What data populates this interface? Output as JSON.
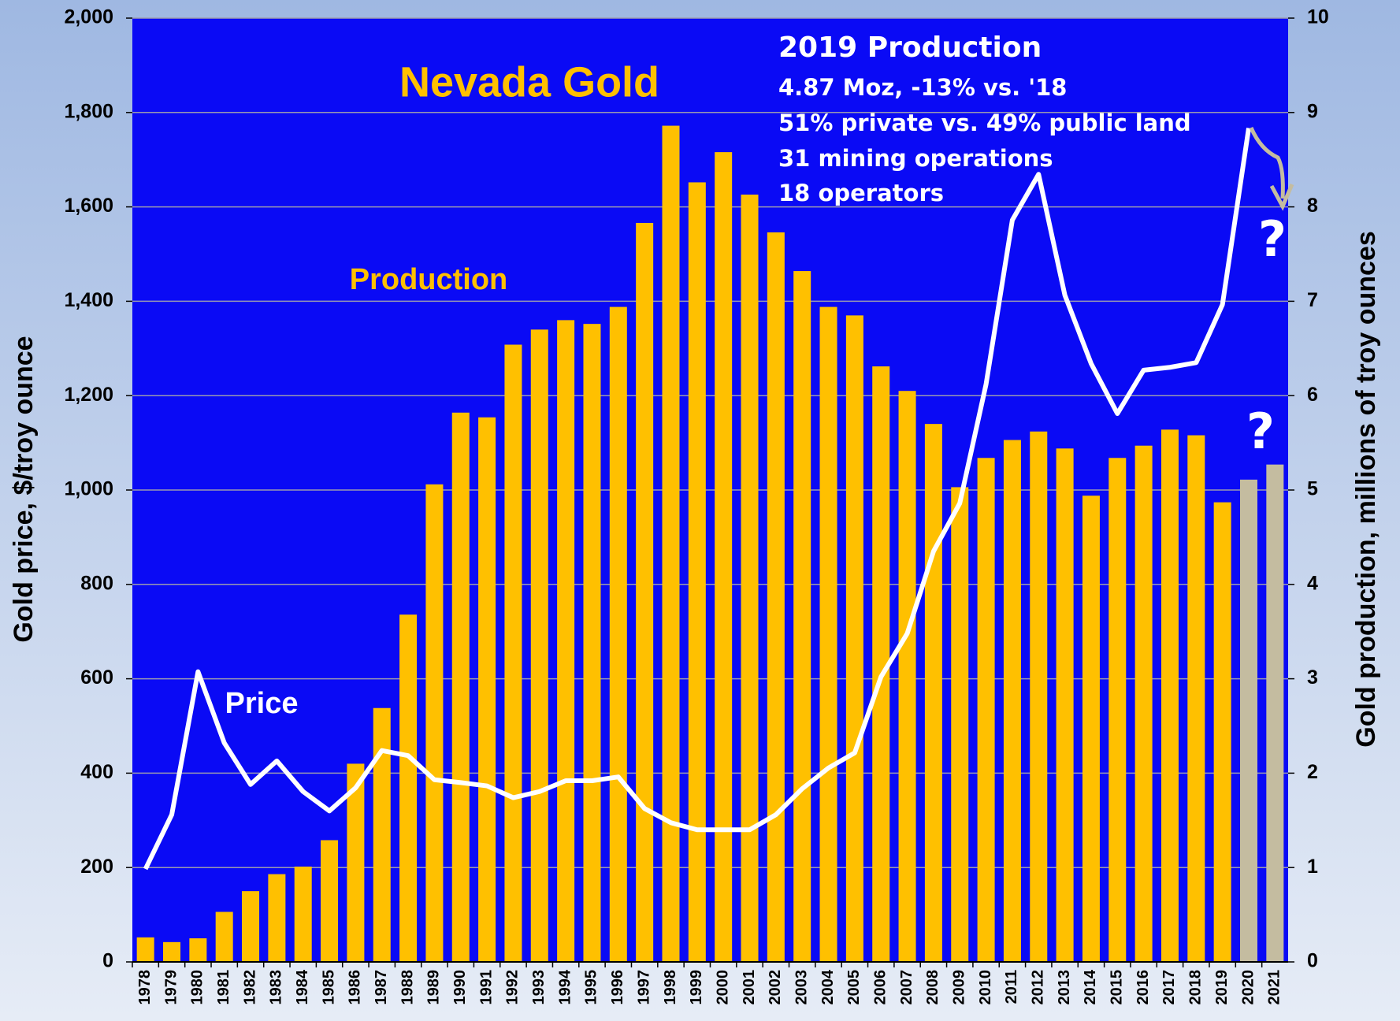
{
  "chart_data": {
    "type": "bar",
    "title": "Nevada Gold",
    "annotations": [
      "2019 Production",
      "4.87 Moz, -13% vs. '18",
      "51% private vs. 49% public land",
      "31 mining operations",
      "18 operators",
      "?",
      "?"
    ],
    "ylabel": "Gold price, $/troy ounce",
    "y2label": "Gold production, millions of troy ounces",
    "categories": [
      "1978",
      "1979",
      "1980",
      "1981",
      "1982",
      "1983",
      "1984",
      "1985",
      "1986",
      "1987",
      "1988",
      "1989",
      "1990",
      "1991",
      "1992",
      "1993",
      "1994",
      "1995",
      "1996",
      "1997",
      "1998",
      "1999",
      "2000",
      "2001",
      "2002",
      "2003",
      "2004",
      "2005",
      "2006",
      "2007",
      "2008",
      "2009",
      "2010",
      "2011",
      "2012",
      "2013",
      "2014",
      "2015",
      "2016",
      "2017",
      "2018",
      "2019",
      "2020",
      "2021"
    ],
    "series": [
      {
        "name": "Production",
        "type": "bar",
        "axis": "y2",
        "colors": [
          "#ffc000",
          "#ffc000",
          "#ffc000",
          "#ffc000",
          "#ffc000",
          "#ffc000",
          "#ffc000",
          "#ffc000",
          "#ffc000",
          "#ffc000",
          "#ffc000",
          "#ffc000",
          "#ffc000",
          "#ffc000",
          "#ffc000",
          "#ffc000",
          "#ffc000",
          "#ffc000",
          "#ffc000",
          "#ffc000",
          "#ffc000",
          "#ffc000",
          "#ffc000",
          "#ffc000",
          "#ffc000",
          "#ffc000",
          "#ffc000",
          "#ffc000",
          "#ffc000",
          "#ffc000",
          "#ffc000",
          "#ffc000",
          "#ffc000",
          "#ffc000",
          "#ffc000",
          "#ffc000",
          "#ffc000",
          "#ffc000",
          "#ffc000",
          "#ffc000",
          "#ffc000",
          "#ffc000",
          "#c4bca0",
          "#c4bca0"
        ],
        "values": [
          0.26,
          0.21,
          0.25,
          0.53,
          0.75,
          0.93,
          1.01,
          1.29,
          2.1,
          2.69,
          3.68,
          5.06,
          5.82,
          5.77,
          6.54,
          6.7,
          6.8,
          6.76,
          6.94,
          7.83,
          8.86,
          8.26,
          8.58,
          8.13,
          7.73,
          7.32,
          6.94,
          6.85,
          6.31,
          6.05,
          5.7,
          5.03,
          5.34,
          5.53,
          5.62,
          5.44,
          4.94,
          5.34,
          5.47,
          5.64,
          5.58,
          4.87,
          5.11,
          5.27
        ]
      },
      {
        "name": "Price",
        "type": "line",
        "color": "#ffffff",
        "values": [
          197,
          312,
          615,
          464,
          376,
          426,
          361,
          320,
          369,
          448,
          437,
          386,
          380,
          373,
          348,
          361,
          384,
          384,
          392,
          325,
          295,
          280,
          280,
          280,
          312,
          367,
          411,
          443,
          604,
          696,
          870,
          972,
          1224,
          1572,
          1669,
          1413,
          1268,
          1162,
          1254,
          1260,
          1270,
          1393,
          1767,
          null
        ]
      }
    ],
    "ylim": [
      0,
      2000
    ],
    "yticks": [
      0,
      200,
      400,
      600,
      800,
      {
        "value": 1000,
        "label": "1,000"
      },
      {
        "value": 1200,
        "label": "1,200"
      },
      {
        "value": 1400,
        "label": "1,400"
      },
      {
        "value": 1600,
        "label": "1,600"
      },
      {
        "value": 1800,
        "label": "1,800"
      },
      {
        "value": 2000,
        "label": "2,000"
      }
    ],
    "y2lim": [
      0,
      10
    ],
    "y2ticks": [
      0,
      1,
      2,
      3,
      4,
      5,
      6,
      7,
      8,
      9,
      10
    ],
    "grid": true,
    "plot_color": "#0a0af5"
  }
}
